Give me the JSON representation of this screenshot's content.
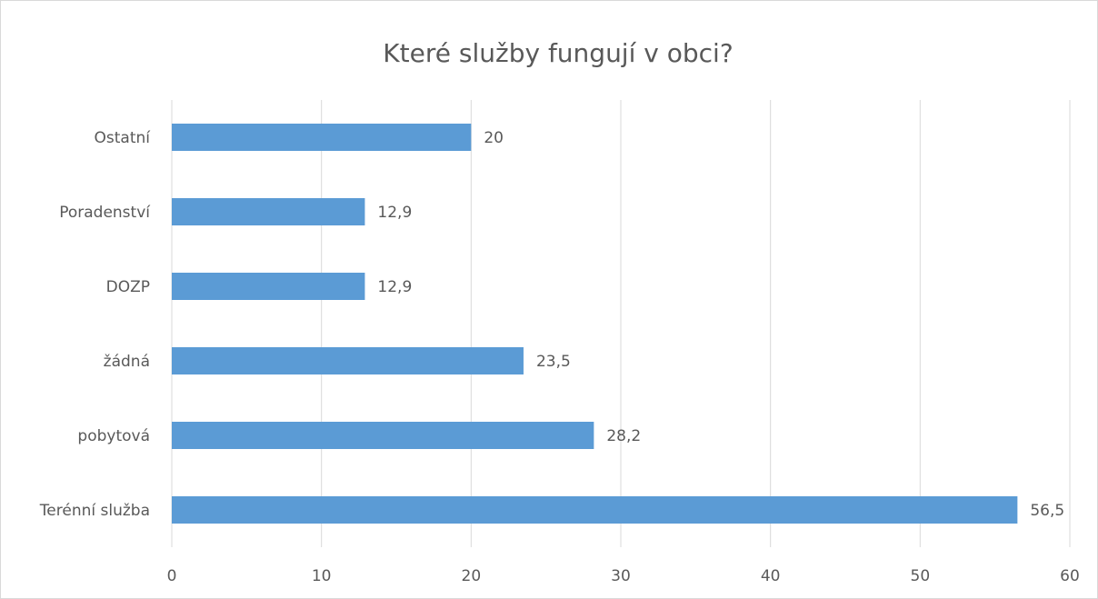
{
  "chart_data": {
    "type": "hbar",
    "title": "Které služby fungují v obci?",
    "categories": [
      "Ostatní",
      "Poradenství",
      "DOZP",
      "žádná",
      "pobytová",
      "Terénní služba"
    ],
    "values": [
      20,
      12.9,
      12.9,
      23.5,
      28.2,
      56.5
    ],
    "value_labels": [
      "20",
      "12,9",
      "12,9",
      "23,5",
      "28,2",
      "56,5"
    ],
    "color": "#5b9bd5",
    "xlim": [
      0,
      60
    ],
    "xticks": [
      0,
      10,
      20,
      30,
      40,
      50,
      60
    ],
    "grid": true
  }
}
